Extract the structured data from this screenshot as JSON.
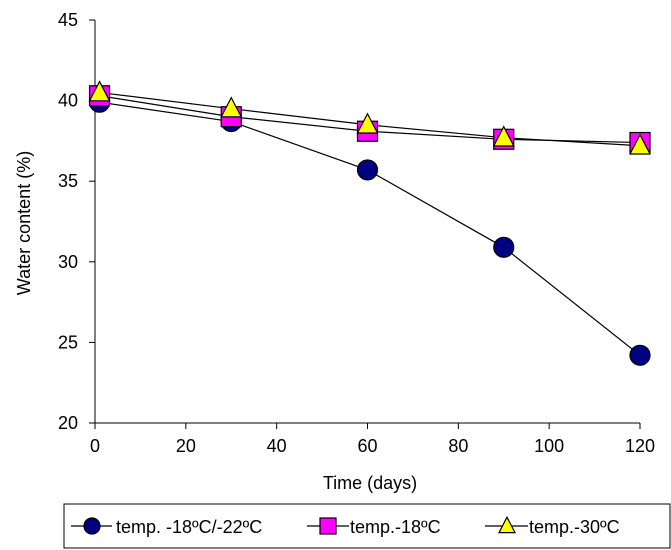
{
  "chart_data": {
    "type": "line",
    "xlabel": "Time (days)",
    "ylabel": "Water content (%)",
    "xlim": [
      0,
      120
    ],
    "ylim": [
      20,
      45
    ],
    "xticks": [
      0,
      20,
      40,
      60,
      80,
      100,
      120
    ],
    "yticks": [
      20,
      25,
      30,
      35,
      40,
      45
    ],
    "grid": false,
    "legend_position": "bottom",
    "series": [
      {
        "name": "temp. -18ºC/-22ºC",
        "marker": "circle",
        "color": "#000080",
        "x": [
          1,
          30,
          60,
          90,
          120
        ],
        "y": [
          39.9,
          38.7,
          35.7,
          30.9,
          24.2
        ]
      },
      {
        "name": "temp.-18ºC",
        "marker": "square",
        "color": "#FF00FF",
        "x": [
          1,
          30,
          60,
          90,
          120
        ],
        "y": [
          40.3,
          39.0,
          38.1,
          37.6,
          37.4
        ]
      },
      {
        "name": "temp.-30ºC",
        "marker": "triangle",
        "color": "#FFFF00",
        "x": [
          1,
          30,
          60,
          90,
          120
        ],
        "y": [
          40.5,
          39.5,
          38.5,
          37.7,
          37.2
        ]
      }
    ]
  }
}
